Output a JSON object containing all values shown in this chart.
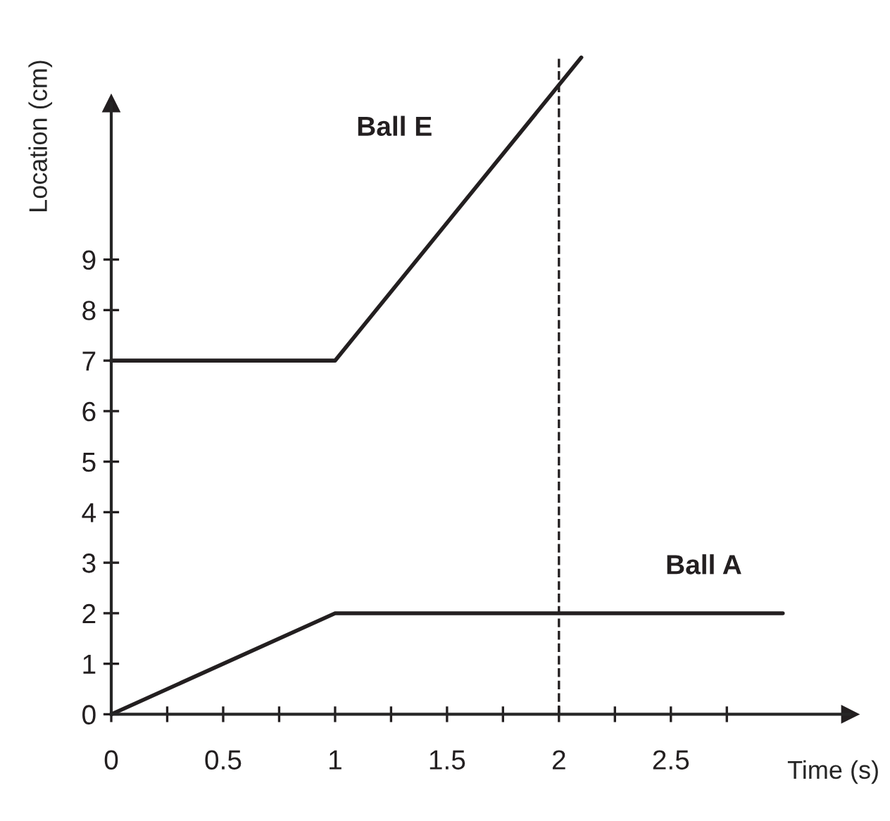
{
  "chart_data": {
    "type": "line",
    "xlabel": "Time (s)",
    "ylabel": "Location (cm)",
    "series": [
      {
        "name": "Ball E",
        "color": "#231f20",
        "x": [
          0,
          1,
          2.1
        ],
        "values": [
          7,
          7,
          13
        ]
      },
      {
        "name": "Ball A",
        "color": "#231f20",
        "x": [
          0,
          1,
          3
        ],
        "values": [
          0,
          2,
          2
        ]
      }
    ],
    "xlim": [
      0,
      3.3
    ],
    "ylim": [
      0,
      13
    ],
    "xticks": [
      0,
      {
        "value": 0.25,
        "label": null
      },
      0.5,
      {
        "value": 0.75,
        "label": null
      },
      1,
      {
        "value": 1.25,
        "label": null
      },
      1.5,
      {
        "value": 1.75,
        "label": null
      },
      2,
      {
        "value": 2.25,
        "label": null
      },
      2.5,
      {
        "value": 2.75,
        "label": null
      }
    ],
    "yticks": [
      0,
      1,
      2,
      3,
      4,
      5,
      6,
      7,
      8,
      9
    ],
    "ref_lines": [
      {
        "axis": "x",
        "value": 2,
        "line_style": "dashed",
        "color": "#231f20"
      }
    ],
    "grid": false,
    "legend": false,
    "marker": "none",
    "line_style": "solid"
  }
}
